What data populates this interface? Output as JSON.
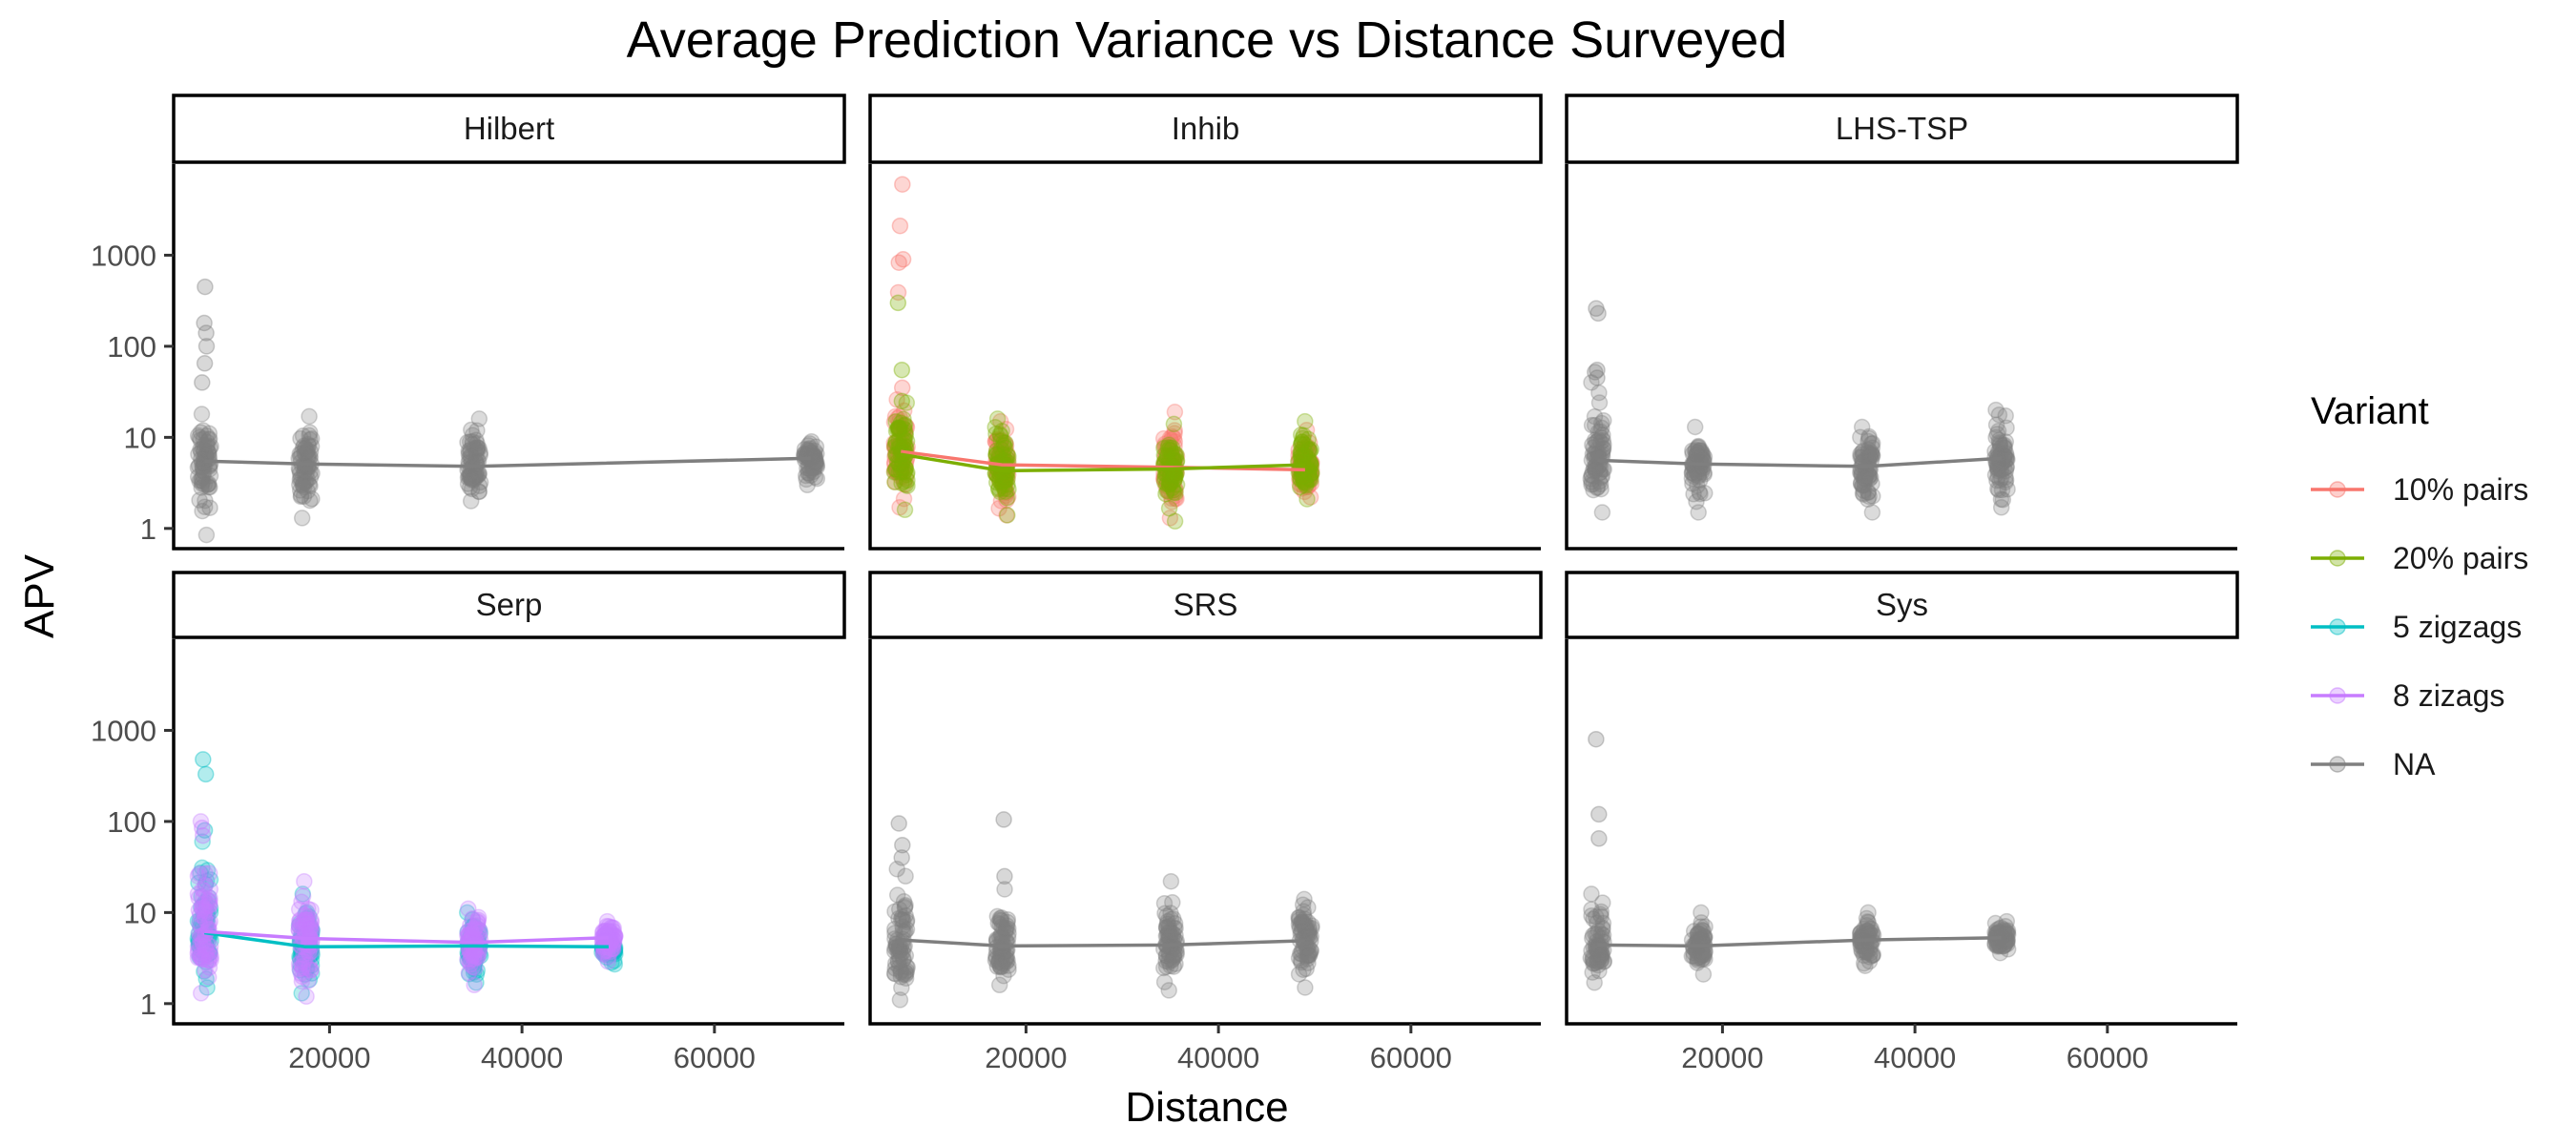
{
  "chart_data": {
    "type": "scatter",
    "title": "Average Prediction Variance vs Distance Surveyed",
    "xlabel": "Distance",
    "ylabel": "APV",
    "x_scale": "linear",
    "y_scale": "log10",
    "xlim": [
      3800,
      73500
    ],
    "ylim": [
      0.6,
      10000
    ],
    "x_ticks": [
      20000,
      40000,
      60000
    ],
    "x_tick_labels": [
      "20000",
      "40000",
      "60000"
    ],
    "y_ticks": [
      1,
      10,
      100,
      1000
    ],
    "y_tick_labels": [
      "1",
      "10",
      "100",
      "1000"
    ],
    "grid": false,
    "legend": {
      "title": "Variant",
      "placement": "right",
      "entries": [
        {
          "label": "10% pairs",
          "color": "#F8766D"
        },
        {
          "label": "20% pairs",
          "color": "#7CAE00"
        },
        {
          "label": "5 zigzags",
          "color": "#00BFC4"
        },
        {
          "label": "8 zizags",
          "color": "#C77CFF"
        },
        {
          "label": "NA",
          "color": "#7F7F7F"
        }
      ]
    },
    "panels": [
      {
        "name": "Hilbert",
        "series": [
          {
            "variant": "NA",
            "x": [
              7000,
              17500,
              35000,
              70000
            ],
            "mean": [
              5.5,
              5.1,
              4.8,
              5.9
            ],
            "ranges": [
              [
                0.85,
                18
              ],
              [
                1.3,
                17
              ],
              [
                2.0,
                16
              ],
              [
                3.0,
                9
              ]
            ],
            "outliers": [
              [
                7000,
                450
              ],
              [
                7000,
                180
              ],
              [
                7000,
                140
              ],
              [
                7000,
                100
              ],
              [
                7000,
                65
              ],
              [
                7000,
                40
              ]
            ]
          }
        ]
      },
      {
        "name": "Inhib",
        "series": [
          {
            "variant": "10% pairs",
            "x": [
              7000,
              17500,
              35000,
              49000
            ],
            "mean": [
              7.0,
              5.0,
              4.7,
              4.4
            ],
            "ranges": [
              [
                1.7,
                26
              ],
              [
                1.4,
                15
              ],
              [
                1.3,
                19
              ],
              [
                2.2,
                12
              ]
            ],
            "outliers": [
              [
                7000,
                6000
              ],
              [
                7000,
                2100
              ],
              [
                7000,
                900
              ],
              [
                7000,
                830
              ],
              [
                7000,
                390
              ],
              [
                7000,
                35
              ]
            ]
          },
          {
            "variant": "20% pairs",
            "x": [
              7000,
              17500,
              35000,
              49000
            ],
            "mean": [
              6.5,
              4.3,
              4.5,
              5.0
            ],
            "ranges": [
              [
                1.6,
                24
              ],
              [
                1.4,
                16
              ],
              [
                1.2,
                14
              ],
              [
                2.1,
                15
              ]
            ],
            "outliers": [
              [
                7000,
                300
              ],
              [
                7000,
                55
              ],
              [
                7000,
                25
              ]
            ]
          }
        ]
      },
      {
        "name": "LHS-TSP",
        "series": [
          {
            "variant": "NA",
            "x": [
              7000,
              17500,
              35000,
              49000
            ],
            "mean": [
              5.6,
              5.1,
              4.8,
              5.9
            ],
            "ranges": [
              [
                1.5,
                40
              ],
              [
                1.5,
                13
              ],
              [
                1.5,
                13
              ],
              [
                1.7,
                20
              ]
            ],
            "outliers": [
              [
                7000,
                260
              ],
              [
                7000,
                230
              ],
              [
                7000,
                55
              ],
              [
                7000,
                52
              ],
              [
                7000,
                45
              ]
            ]
          }
        ]
      },
      {
        "name": "Serp",
        "series": [
          {
            "variant": "5 zigzags",
            "x": [
              7000,
              17500,
              35000,
              49000
            ],
            "mean": [
              6.0,
              4.2,
              4.3,
              4.2
            ],
            "ranges": [
              [
                1.5,
                60
              ],
              [
                1.3,
                16
              ],
              [
                1.7,
                10
              ],
              [
                2.7,
                4
              ]
            ],
            "outliers": [
              [
                7000,
                480
              ],
              [
                7000,
                330
              ],
              [
                7000,
                80
              ]
            ]
          },
          {
            "variant": "8 zizags",
            "x": [
              7000,
              17500,
              35000,
              49000
            ],
            "mean": [
              6.2,
              5.2,
              4.7,
              5.3
            ],
            "ranges": [
              [
                1.3,
                100
              ],
              [
                1.2,
                22
              ],
              [
                1.6,
                11
              ],
              [
                2.9,
                8
              ]
            ],
            "outliers": [
              [
                7000,
                85
              ],
              [
                7000,
                70
              ]
            ]
          }
        ]
      },
      {
        "name": "SRS",
        "series": [
          {
            "variant": "NA",
            "x": [
              7000,
              17500,
              35000,
              49000
            ],
            "mean": [
              5.0,
              4.3,
              4.4,
              4.9
            ],
            "ranges": [
              [
                1.1,
                30
              ],
              [
                1.6,
                18
              ],
              [
                1.4,
                22
              ],
              [
                1.5,
                14
              ]
            ],
            "outliers": [
              [
                7000,
                95
              ],
              [
                7000,
                55
              ],
              [
                7000,
                40
              ],
              [
                17500,
                105
              ],
              [
                17500,
                25
              ]
            ]
          }
        ]
      },
      {
        "name": "Sys",
        "series": [
          {
            "variant": "NA",
            "x": [
              7000,
              17500,
              35000,
              49000
            ],
            "mean": [
              4.4,
              4.3,
              5.0,
              5.3
            ],
            "ranges": [
              [
                1.7,
                16
              ],
              [
                2.1,
                10
              ],
              [
                2.6,
                10
              ],
              [
                3.6,
                8
              ]
            ],
            "outliers": [
              [
                7000,
                800
              ],
              [
                7000,
                120
              ],
              [
                7000,
                65
              ]
            ]
          }
        ]
      }
    ]
  }
}
